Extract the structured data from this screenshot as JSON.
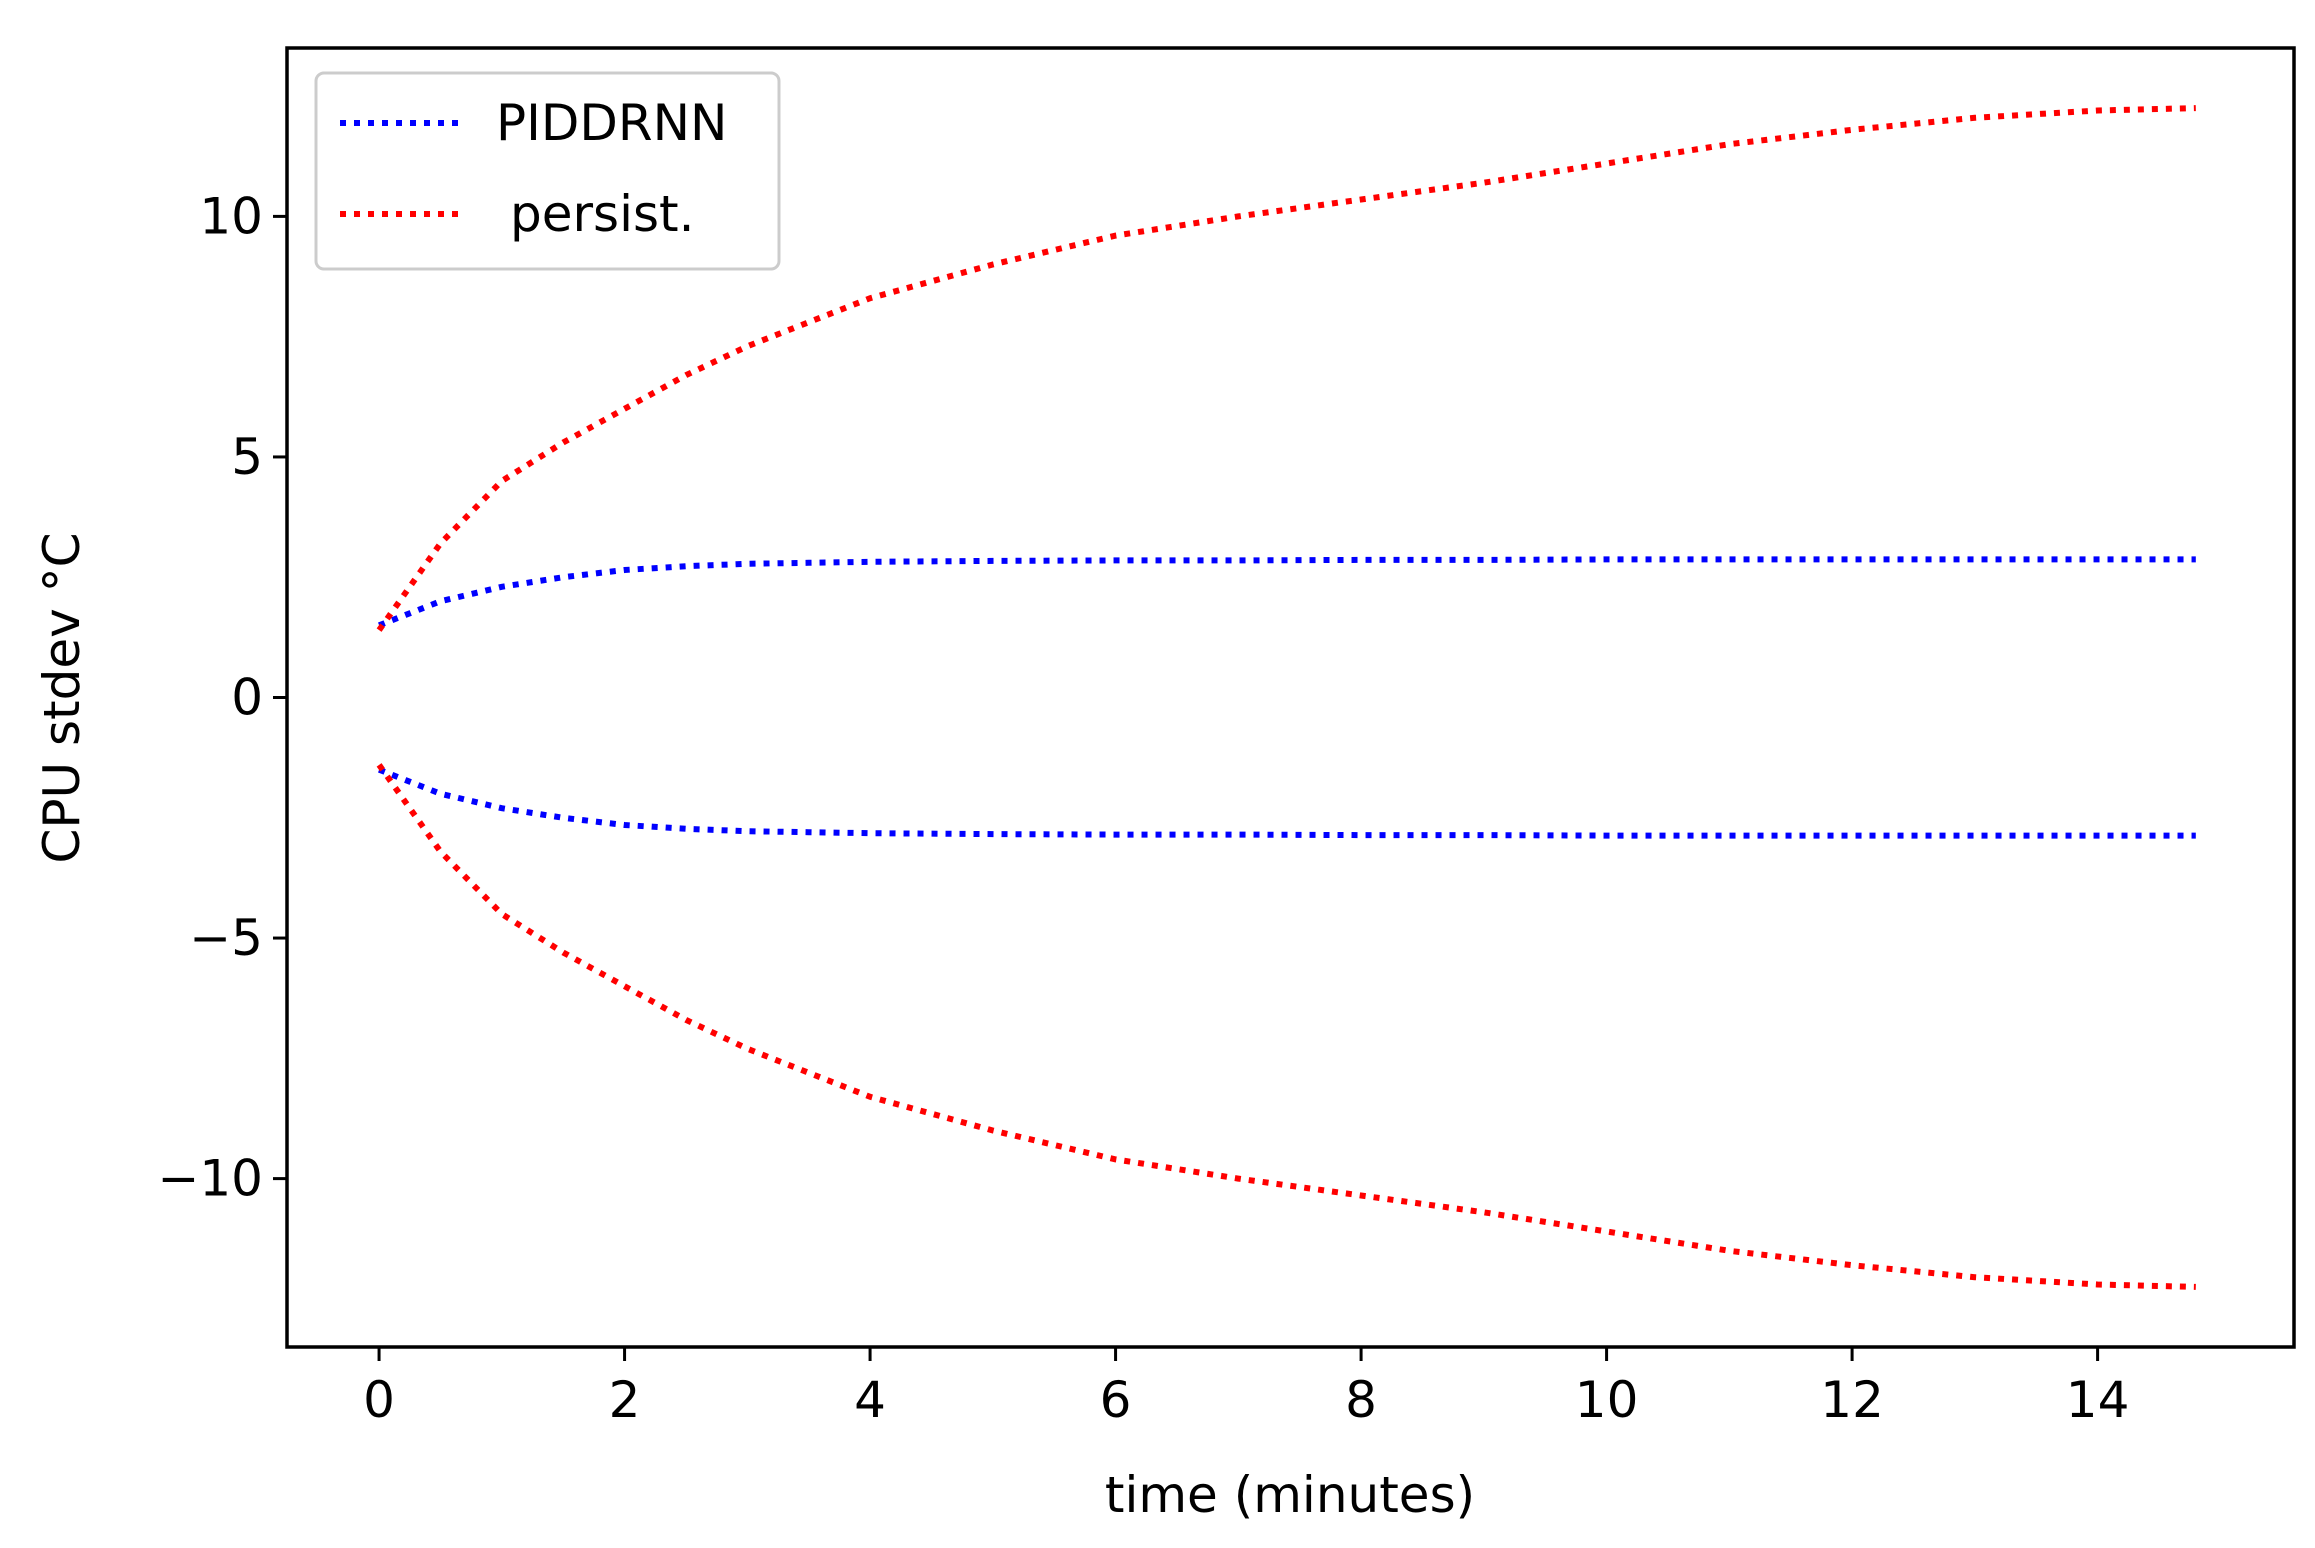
{
  "chart_data": {
    "type": "line",
    "title": "",
    "xlabel": "time (minutes)",
    "ylabel": "CPU stdev °C",
    "xlim": [
      -0.75,
      15.6
    ],
    "ylim": [
      -13.5,
      13.5
    ],
    "xticks": [
      0,
      2,
      4,
      6,
      8,
      10,
      12,
      14
    ],
    "xtick_labels": [
      "0",
      "2",
      "4",
      "6",
      "8",
      "10",
      "12",
      "14"
    ],
    "yticks": [
      -10,
      -5,
      0,
      5,
      10
    ],
    "ytick_labels": [
      "−10",
      "−5",
      "0",
      "5",
      "10"
    ],
    "grid": false,
    "legend_position": "top-left",
    "legend": [
      {
        "label": "PIDDRNN",
        "color": "#0000ff",
        "linestyle": "dotted"
      },
      {
        "label": "persist.",
        "color": "#ff0000",
        "linestyle": "dotted"
      }
    ],
    "x": [
      0,
      0.5,
      1,
      1.5,
      2,
      2.5,
      3,
      3.5,
      4,
      5,
      6,
      7,
      8,
      9,
      10,
      11,
      12,
      13,
      14,
      14.8
    ],
    "series": [
      {
        "name": "PIDDRNN",
        "bound": "upper",
        "color": "#0000ff",
        "values": [
          1.5,
          2.0,
          2.3,
          2.5,
          2.65,
          2.73,
          2.78,
          2.8,
          2.82,
          2.84,
          2.85,
          2.85,
          2.86,
          2.86,
          2.87,
          2.87,
          2.87,
          2.87,
          2.87,
          2.87
        ]
      },
      {
        "name": "PIDDRNN",
        "bound": "lower",
        "color": "#0000ff",
        "values": [
          -1.5,
          -2.0,
          -2.3,
          -2.5,
          -2.65,
          -2.73,
          -2.78,
          -2.8,
          -2.82,
          -2.84,
          -2.85,
          -2.85,
          -2.86,
          -2.86,
          -2.87,
          -2.87,
          -2.87,
          -2.87,
          -2.87,
          -2.87
        ]
      },
      {
        "name": "persist.",
        "bound": "upper",
        "color": "#ff0000",
        "values": [
          1.4,
          3.2,
          4.5,
          5.3,
          6.0,
          6.7,
          7.3,
          7.8,
          8.3,
          9.0,
          9.6,
          10.0,
          10.35,
          10.7,
          11.1,
          11.5,
          11.8,
          12.05,
          12.2,
          12.25
        ]
      },
      {
        "name": "persist.",
        "bound": "lower",
        "color": "#ff0000",
        "values": [
          -1.4,
          -3.2,
          -4.5,
          -5.3,
          -6.0,
          -6.7,
          -7.3,
          -7.8,
          -8.3,
          -9.0,
          -9.6,
          -10.0,
          -10.35,
          -10.7,
          -11.1,
          -11.5,
          -11.8,
          -12.05,
          -12.2,
          -12.25
        ]
      }
    ]
  }
}
